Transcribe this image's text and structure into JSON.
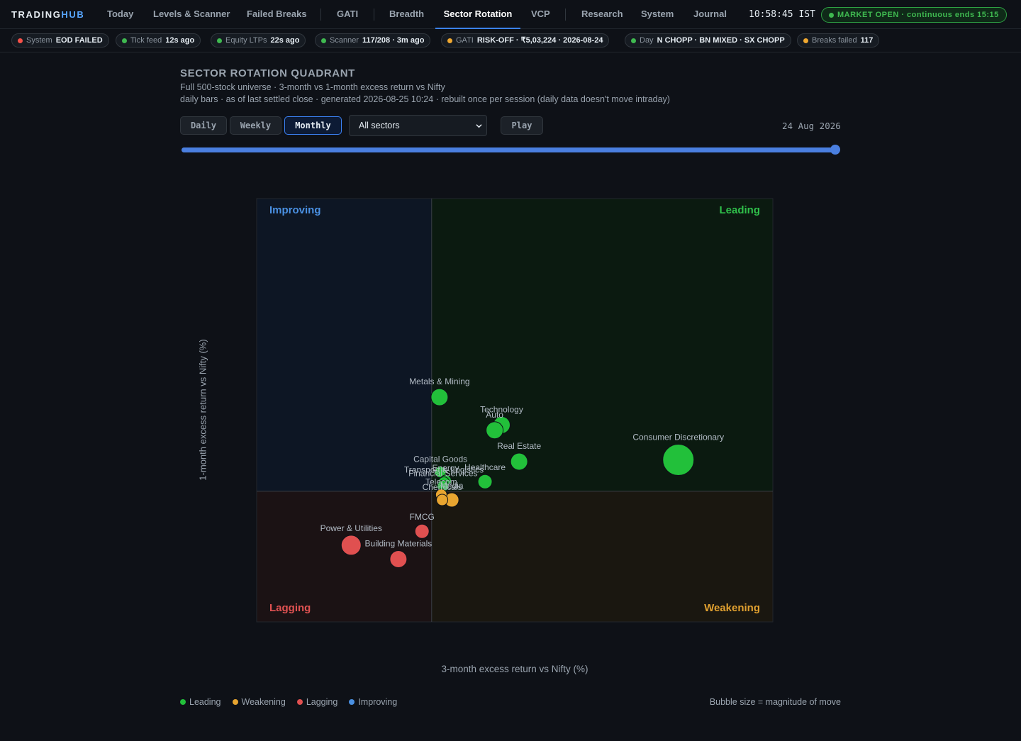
{
  "brand": {
    "part1": "TRADING",
    "part2": "HUB"
  },
  "nav": {
    "items": [
      "Today",
      "Levels & Scanner",
      "Failed Breaks",
      "GATI",
      "Breadth",
      "Sector Rotation",
      "VCP",
      "Research",
      "System",
      "Journal"
    ],
    "active": "Sector Rotation"
  },
  "clock": "10:58:45 IST",
  "market": {
    "label": "MARKET OPEN · continuous ends 15:15",
    "color": "#3fb950"
  },
  "status_chips": [
    {
      "label": "System",
      "value": "EOD FAILED",
      "color": "#f85149"
    },
    {
      "label": "Tick feed",
      "value": "12s ago",
      "color": "#3fb950"
    },
    {
      "label": "Equity LTPs",
      "value": "22s ago",
      "color": "#3fb950"
    },
    {
      "label": "Scanner",
      "value": "117/208 · 3m ago",
      "color": "#3fb950"
    },
    {
      "label": "GATI",
      "value": "RISK-OFF · ₹5,03,224 · 2026-08-24",
      "color": "#f0a830"
    },
    {
      "label": "Day",
      "value": "N CHOPP · BN MIXED · SX CHOPP",
      "color": "#3fb950"
    },
    {
      "label": "Breaks failed",
      "value": "117",
      "color": "#f0a830"
    }
  ],
  "page": {
    "title": "SECTOR ROTATION QUADRANT",
    "subtitle1": "Full 500-stock universe · 3-month vs 1-month excess return vs Nifty",
    "subtitle2": "daily bars · as of last settled close · generated 2026-08-25 10:24 · rebuilt once per session (daily data doesn't move intraday)"
  },
  "controls": {
    "timeframes": [
      "Daily",
      "Weekly",
      "Monthly"
    ],
    "active_timeframe": "Monthly",
    "sector_filter": "All sectors",
    "play_label": "Play",
    "date": "24 Aug 2026",
    "slider_progress": 1.0
  },
  "chart_data": {
    "type": "scatter",
    "xlabel": "3-month excess return vs Nifty (%)",
    "ylabel": "1-month excess return vs Nifty (%)",
    "xlim": [
      -10,
      19.5
    ],
    "ylim": [
      -7.5,
      16.8
    ],
    "quadrants": [
      {
        "name": "Improving",
        "color": "#4a90e2",
        "bg": "#0d1624"
      },
      {
        "name": "Leading",
        "color": "#2fbf4a",
        "bg": "#0b1a10"
      },
      {
        "name": "Lagging",
        "color": "#e05252",
        "bg": "#1b1214"
      },
      {
        "name": "Weakening",
        "color": "#e0a030",
        "bg": "#1a1710"
      }
    ],
    "quadrant_colors": {
      "Leading": "#22c03a",
      "Weakening": "#e8a530",
      "Lagging": "#e05050",
      "Improving": "#4a90e2"
    },
    "series": [
      {
        "name": "Metals & Mining",
        "x": 0.45,
        "y": 5.4,
        "size": 5,
        "quadrant": "Leading"
      },
      {
        "name": "Technology",
        "x": 4.0,
        "y": 3.8,
        "size": 5,
        "quadrant": "Leading"
      },
      {
        "name": "Auto",
        "x": 3.6,
        "y": 3.5,
        "size": 5,
        "quadrant": "Leading"
      },
      {
        "name": "Real Estate",
        "x": 5.0,
        "y": 1.7,
        "size": 5,
        "quadrant": "Leading"
      },
      {
        "name": "Consumer Discretionary",
        "x": 14.1,
        "y": 1.8,
        "size": 10,
        "quadrant": "Leading"
      },
      {
        "name": "Capital Goods",
        "x": 0.5,
        "y": 1.1,
        "size": 3,
        "quadrant": "Leading"
      },
      {
        "name": "Energy",
        "x": 0.8,
        "y": 0.6,
        "size": 3,
        "quadrant": "Leading"
      },
      {
        "name": "Healthcare",
        "x": 3.05,
        "y": 0.55,
        "size": 4,
        "quadrant": "Leading"
      },
      {
        "name": "Transport & Logistics",
        "x": 0.7,
        "y": 0.5,
        "size": 3,
        "quadrant": "Leading"
      },
      {
        "name": "Financial Services",
        "x": 0.65,
        "y": 0.3,
        "size": 3,
        "quadrant": "Leading"
      },
      {
        "name": "Telecom",
        "x": 0.55,
        "y": -0.2,
        "size": 3,
        "quadrant": "Weakening"
      },
      {
        "name": "Chemicals",
        "x": 0.6,
        "y": -0.5,
        "size": 3,
        "quadrant": "Weakening"
      },
      {
        "name": "Media",
        "x": 1.15,
        "y": -0.5,
        "size": 4,
        "quadrant": "Weakening"
      },
      {
        "name": "FMCG",
        "x": -0.55,
        "y": -2.3,
        "size": 4,
        "quadrant": "Lagging"
      },
      {
        "name": "Power & Utilities",
        "x": -4.6,
        "y": -3.1,
        "size": 6,
        "quadrant": "Lagging"
      },
      {
        "name": "Building Materials",
        "x": -1.9,
        "y": -3.9,
        "size": 5,
        "quadrant": "Lagging"
      }
    ]
  },
  "legend": {
    "items": [
      {
        "label": "Leading",
        "color": "#22c03a"
      },
      {
        "label": "Weakening",
        "color": "#e8a530"
      },
      {
        "label": "Lagging",
        "color": "#e05050"
      },
      {
        "label": "Improving",
        "color": "#4a90e2"
      }
    ],
    "bubble_note": "Bubble size = magnitude of move"
  }
}
